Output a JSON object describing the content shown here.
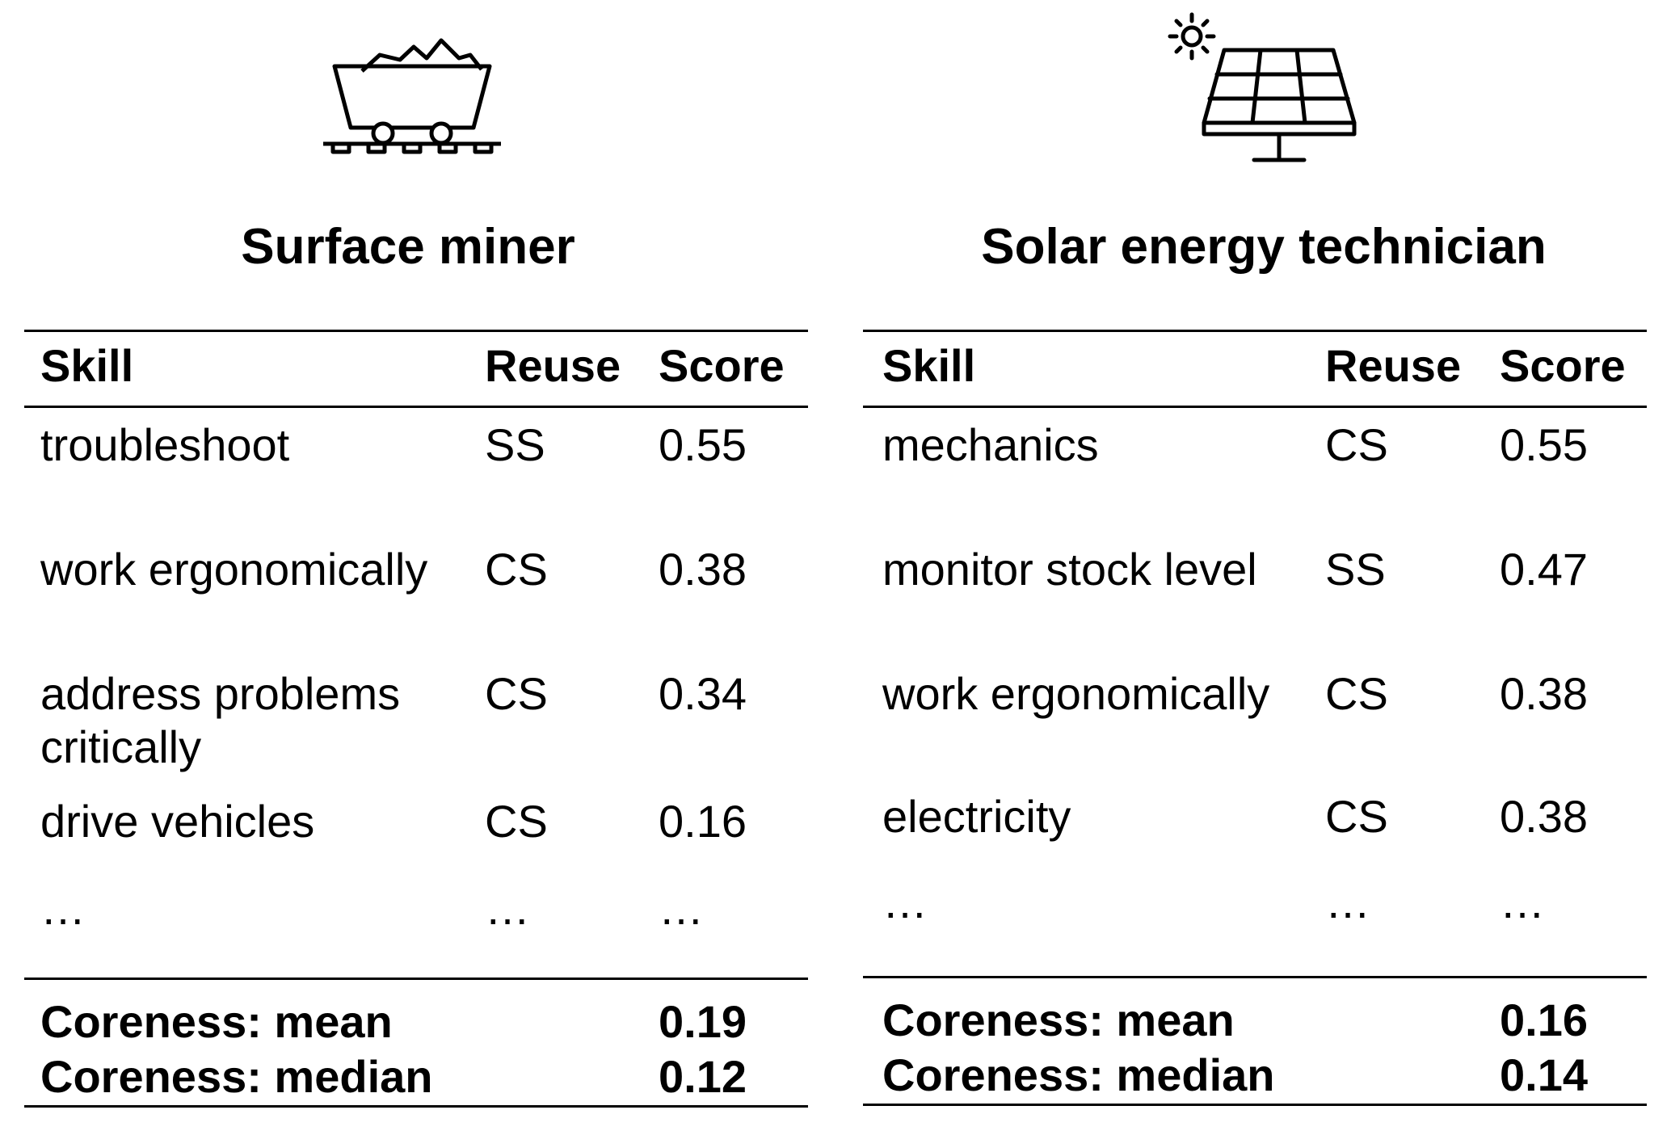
{
  "left": {
    "title": "Surface miner",
    "icon": "mine-cart-icon",
    "headers": {
      "skill": "Skill",
      "reuse": "Reuse",
      "score": "Score"
    },
    "rows": [
      {
        "skill": "troubleshoot",
        "reuse": "SS",
        "score": "0.55"
      },
      {
        "skill": "work ergonomically",
        "reuse": "CS",
        "score": "0.38"
      },
      {
        "skill": "address problems critically",
        "reuse": "CS",
        "score": "0.34"
      },
      {
        "skill": "drive vehicles",
        "reuse": "CS",
        "score": "0.16"
      },
      {
        "skill": "…",
        "reuse": "…",
        "score": "…"
      }
    ],
    "summary": [
      {
        "label": "Coreness: mean",
        "value": "0.19"
      },
      {
        "label": "Coreness: median",
        "value": "0.12"
      }
    ]
  },
  "right": {
    "title": "Solar energy technician",
    "icon": "solar-panel-icon",
    "headers": {
      "skill": "Skill",
      "reuse": "Reuse",
      "score": "Score"
    },
    "rows": [
      {
        "skill": "mechanics",
        "reuse": "CS",
        "score": "0.55"
      },
      {
        "skill": "monitor stock level",
        "reuse": "SS",
        "score": "0.47"
      },
      {
        "skill": "work ergonomically",
        "reuse": "CS",
        "score": "0.38"
      },
      {
        "skill": "electricity",
        "reuse": "CS",
        "score": "0.38"
      },
      {
        "skill": "…",
        "reuse": "…",
        "score": "…"
      }
    ],
    "summary": [
      {
        "label": "Coreness: mean",
        "value": "0.16"
      },
      {
        "label": "Coreness: median",
        "value": "0.14"
      }
    ]
  }
}
